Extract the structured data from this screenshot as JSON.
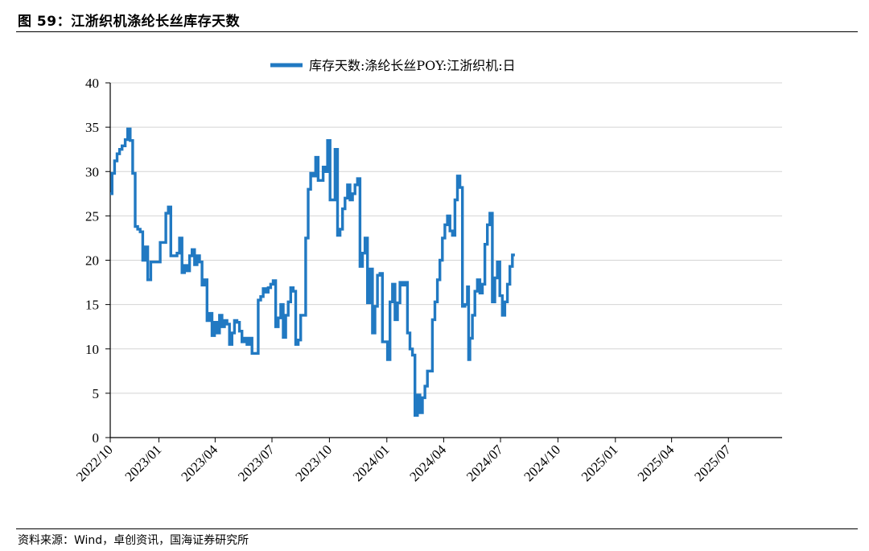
{
  "figure": {
    "title": "图 59：江浙织机涤纶长丝库存天数",
    "source": "资料来源：Wind，卓创资讯，国海证券研究所"
  },
  "colors": {
    "series": "#2179c2",
    "grid": "#d4d4d4",
    "axis": "#000000"
  },
  "chart_data": {
    "type": "line",
    "step": true,
    "title": "",
    "xlabel": "",
    "ylabel": "",
    "legend": {
      "position": "top-center"
    },
    "grid": {
      "y": true,
      "x": false
    },
    "ylim": [
      0,
      40
    ],
    "yticks": [
      0,
      5,
      10,
      15,
      20,
      25,
      30,
      35,
      40
    ],
    "xlim": [
      "2022-10-15",
      "2025-09-25"
    ],
    "xticks": [
      "2022/10",
      "2023/01",
      "2023/04",
      "2023/07",
      "2023/10",
      "2024/01",
      "2024/04",
      "2024/07",
      "2024/10",
      "2025/01",
      "2025/04",
      "2025/07"
    ],
    "series": [
      {
        "name": "库存天数:涤纶长丝POY:江浙织机:日",
        "points": [
          [
            "2022-10-15",
            27.5
          ],
          [
            "2022-10-18",
            29.8
          ],
          [
            "2022-10-22",
            31.2
          ],
          [
            "2022-10-26",
            32.0
          ],
          [
            "2022-10-30",
            32.5
          ],
          [
            "2022-11-03",
            32.9
          ],
          [
            "2022-11-08",
            33.6
          ],
          [
            "2022-11-12",
            34.8
          ],
          [
            "2022-11-16",
            33.5
          ],
          [
            "2022-11-20",
            29.8
          ],
          [
            "2022-11-24",
            23.8
          ],
          [
            "2022-11-28",
            23.5
          ],
          [
            "2022-12-02",
            23.2
          ],
          [
            "2022-12-06",
            20.0
          ],
          [
            "2022-12-10",
            21.5
          ],
          [
            "2022-12-14",
            17.8
          ],
          [
            "2022-12-19",
            19.8
          ],
          [
            "2023-01-03",
            22.0
          ],
          [
            "2023-01-12",
            25.3
          ],
          [
            "2023-01-16",
            26.0
          ],
          [
            "2023-01-20",
            20.5
          ],
          [
            "2023-01-30",
            20.8
          ],
          [
            "2023-02-03",
            22.5
          ],
          [
            "2023-02-07",
            18.6
          ],
          [
            "2023-02-11",
            19.4
          ],
          [
            "2023-02-15",
            18.8
          ],
          [
            "2023-02-19",
            20.5
          ],
          [
            "2023-02-23",
            21.2
          ],
          [
            "2023-02-27",
            19.5
          ],
          [
            "2023-03-03",
            20.5
          ],
          [
            "2023-03-07",
            19.8
          ],
          [
            "2023-03-11",
            17.2
          ],
          [
            "2023-03-15",
            17.8
          ],
          [
            "2023-03-19",
            13.2
          ],
          [
            "2023-03-23",
            14.0
          ],
          [
            "2023-03-27",
            11.5
          ],
          [
            "2023-03-31",
            13.0
          ],
          [
            "2023-04-04",
            11.8
          ],
          [
            "2023-04-08",
            13.8
          ],
          [
            "2023-04-12",
            12.5
          ],
          [
            "2023-04-16",
            13.2
          ],
          [
            "2023-04-20",
            12.8
          ],
          [
            "2023-04-24",
            10.5
          ],
          [
            "2023-04-28",
            11.8
          ],
          [
            "2023-05-02",
            13.2
          ],
          [
            "2023-05-06",
            13.0
          ],
          [
            "2023-05-10",
            12.0
          ],
          [
            "2023-05-14",
            10.8
          ],
          [
            "2023-05-18",
            11.2
          ],
          [
            "2023-05-22",
            10.5
          ],
          [
            "2023-05-26",
            11.2
          ],
          [
            "2023-05-30",
            9.5
          ],
          [
            "2023-06-09",
            15.5
          ],
          [
            "2023-06-13",
            15.9
          ],
          [
            "2023-06-17",
            16.8
          ],
          [
            "2023-06-21",
            16.4
          ],
          [
            "2023-06-25",
            16.9
          ],
          [
            "2023-06-29",
            17.3
          ],
          [
            "2023-07-03",
            17.7
          ],
          [
            "2023-07-07",
            12.5
          ],
          [
            "2023-07-11",
            13.5
          ],
          [
            "2023-07-15",
            15.0
          ],
          [
            "2023-07-19",
            11.3
          ],
          [
            "2023-07-23",
            13.8
          ],
          [
            "2023-07-27",
            15.3
          ],
          [
            "2023-07-31",
            16.9
          ],
          [
            "2023-08-04",
            16.5
          ],
          [
            "2023-08-08",
            10.5
          ],
          [
            "2023-08-12",
            11.0
          ],
          [
            "2023-08-16",
            13.8
          ],
          [
            "2023-08-24",
            22.5
          ],
          [
            "2023-08-28",
            28.0
          ],
          [
            "2023-09-01",
            29.8
          ],
          [
            "2023-09-05",
            29.5
          ],
          [
            "2023-09-09",
            31.6
          ],
          [
            "2023-09-13",
            29.0
          ],
          [
            "2023-09-21",
            30.5
          ],
          [
            "2023-09-25",
            30.0
          ],
          [
            "2023-09-28",
            33.5
          ],
          [
            "2023-10-02",
            26.8
          ],
          [
            "2023-10-10",
            32.5
          ],
          [
            "2023-10-14",
            22.8
          ],
          [
            "2023-10-18",
            23.5
          ],
          [
            "2023-10-22",
            25.8
          ],
          [
            "2023-10-26",
            27.0
          ],
          [
            "2023-10-30",
            28.5
          ],
          [
            "2023-11-03",
            26.8
          ],
          [
            "2023-11-07",
            27.5
          ],
          [
            "2023-11-11",
            28.5
          ],
          [
            "2023-11-15",
            29.2
          ],
          [
            "2023-11-19",
            19.3
          ],
          [
            "2023-11-23",
            20.8
          ],
          [
            "2023-11-27",
            22.5
          ],
          [
            "2023-12-01",
            15.2
          ],
          [
            "2023-12-05",
            19.0
          ],
          [
            "2023-12-09",
            11.8
          ],
          [
            "2023-12-13",
            14.8
          ],
          [
            "2023-12-17",
            18.3
          ],
          [
            "2023-12-21",
            18.5
          ],
          [
            "2023-12-25",
            10.8
          ],
          [
            "2023-12-29",
            10.8
          ],
          [
            "2024-01-02",
            8.8
          ],
          [
            "2024-01-06",
            15.3
          ],
          [
            "2024-01-10",
            17.3
          ],
          [
            "2024-01-14",
            13.3
          ],
          [
            "2024-01-18",
            15.2
          ],
          [
            "2024-01-22",
            17.5
          ],
          [
            "2024-01-26",
            17.2
          ],
          [
            "2024-01-30",
            17.5
          ],
          [
            "2024-02-03",
            11.8
          ],
          [
            "2024-02-07",
            10.0
          ],
          [
            "2024-02-11",
            9.3
          ],
          [
            "2024-02-15",
            2.5
          ],
          [
            "2024-02-19",
            4.8
          ],
          [
            "2024-02-23",
            2.8
          ],
          [
            "2024-02-27",
            4.5
          ],
          [
            "2024-03-02",
            5.8
          ],
          [
            "2024-03-06",
            7.5
          ],
          [
            "2024-03-14",
            13.3
          ],
          [
            "2024-03-18",
            15.3
          ],
          [
            "2024-03-22",
            17.8
          ],
          [
            "2024-03-26",
            20.0
          ],
          [
            "2024-03-30",
            22.5
          ],
          [
            "2024-04-03",
            24.0
          ],
          [
            "2024-04-07",
            25.0
          ],
          [
            "2024-04-11",
            23.3
          ],
          [
            "2024-04-15",
            22.8
          ],
          [
            "2024-04-19",
            26.8
          ],
          [
            "2024-04-23",
            29.5
          ],
          [
            "2024-04-27",
            28.2
          ],
          [
            "2024-05-01",
            14.8
          ],
          [
            "2024-05-05",
            15.0
          ],
          [
            "2024-05-09",
            17.0
          ],
          [
            "2024-05-11",
            8.8
          ],
          [
            "2024-05-13",
            11.2
          ],
          [
            "2024-05-17",
            13.8
          ],
          [
            "2024-05-21",
            16.5
          ],
          [
            "2024-05-25",
            17.8
          ],
          [
            "2024-05-29",
            16.3
          ],
          [
            "2024-06-02",
            17.3
          ],
          [
            "2024-06-06",
            21.8
          ],
          [
            "2024-06-10",
            24.0
          ],
          [
            "2024-06-14",
            25.3
          ],
          [
            "2024-06-18",
            15.3
          ],
          [
            "2024-06-22",
            18.0
          ],
          [
            "2024-06-26",
            19.8
          ],
          [
            "2024-06-30",
            16.0
          ],
          [
            "2024-07-04",
            13.8
          ],
          [
            "2024-07-08",
            15.3
          ],
          [
            "2024-07-12",
            17.3
          ],
          [
            "2024-07-16",
            19.3
          ],
          [
            "2024-07-20",
            20.6
          ],
          [
            "2024-07-24",
            20.6
          ]
        ]
      }
    ]
  }
}
